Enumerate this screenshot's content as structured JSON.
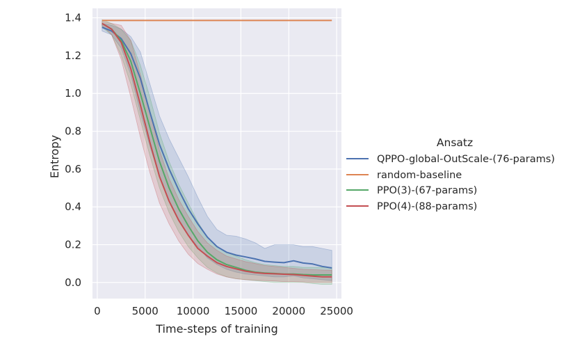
{
  "chart_data": {
    "type": "line",
    "xlabel": "Time-steps of training",
    "ylabel": "Entropy",
    "xlim": [
      -500,
      25500
    ],
    "ylim": [
      -0.085,
      1.45
    ],
    "xticks": [
      0,
      5000,
      10000,
      15000,
      20000,
      25000
    ],
    "yticks": [
      0.0,
      0.2,
      0.4,
      0.6,
      0.8,
      1.0,
      1.2,
      1.4
    ],
    "xtick_labels": [
      "0",
      "5000",
      "10000",
      "15000",
      "20000",
      "25000"
    ],
    "ytick_labels": [
      "0.0",
      "0.2",
      "0.4",
      "0.6",
      "0.8",
      "1.0",
      "1.2",
      "1.4"
    ],
    "grid": true,
    "legend": {
      "title": "Ansatz",
      "placement": "right-outside"
    },
    "x": [
      500,
      1500,
      2500,
      3500,
      4500,
      5500,
      6500,
      7500,
      8500,
      9500,
      10500,
      11500,
      12500,
      13500,
      14500,
      15500,
      16500,
      17500,
      18500,
      19500,
      20500,
      21500,
      22500,
      23500,
      24500
    ],
    "series": [
      {
        "name": "QPPO-global-OutScale-(76-params)",
        "color": "#4c72b0",
        "values": [
          1.35,
          1.33,
          1.29,
          1.21,
          1.08,
          0.9,
          0.73,
          0.6,
          0.49,
          0.39,
          0.31,
          0.24,
          0.19,
          0.16,
          0.145,
          0.135,
          0.125,
          0.112,
          0.108,
          0.105,
          0.115,
          0.103,
          0.098,
          0.085,
          0.077
        ],
        "lower": [
          1.33,
          1.31,
          1.24,
          1.1,
          0.9,
          0.72,
          0.56,
          0.43,
          0.33,
          0.25,
          0.19,
          0.13,
          0.095,
          0.07,
          0.055,
          0.045,
          0.04,
          0.035,
          0.03,
          0.03,
          0.035,
          0.025,
          0.02,
          0.015,
          0.01
        ],
        "upper": [
          1.37,
          1.36,
          1.34,
          1.3,
          1.22,
          1.05,
          0.88,
          0.76,
          0.66,
          0.56,
          0.45,
          0.35,
          0.28,
          0.25,
          0.245,
          0.23,
          0.21,
          0.18,
          0.2,
          0.2,
          0.2,
          0.19,
          0.19,
          0.18,
          0.17
        ]
      },
      {
        "name": "random-baseline",
        "color": "#dd8452",
        "values": [
          1.386,
          1.386,
          1.386,
          1.386,
          1.386,
          1.386,
          1.386,
          1.386,
          1.386,
          1.386,
          1.386,
          1.386,
          1.386,
          1.386,
          1.386,
          1.386,
          1.386,
          1.386,
          1.386,
          1.386,
          1.386,
          1.386,
          1.386,
          1.386,
          1.386
        ]
      },
      {
        "name": "PPO(3)-(67-params)",
        "color": "#55a868",
        "values": [
          1.37,
          1.34,
          1.28,
          1.17,
          1.0,
          0.82,
          0.64,
          0.5,
          0.39,
          0.3,
          0.22,
          0.16,
          0.12,
          0.095,
          0.08,
          0.065,
          0.055,
          0.05,
          0.048,
          0.045,
          0.045,
          0.042,
          0.04,
          0.04,
          0.04
        ],
        "lower": [
          1.35,
          1.31,
          1.2,
          1.05,
          0.86,
          0.67,
          0.5,
          0.37,
          0.27,
          0.19,
          0.13,
          0.08,
          0.05,
          0.03,
          0.02,
          0.015,
          0.01,
          0.005,
          0.0,
          0.0,
          0.0,
          0.0,
          -0.005,
          -0.01,
          -0.01
        ],
        "upper": [
          1.39,
          1.37,
          1.34,
          1.28,
          1.15,
          0.98,
          0.79,
          0.64,
          0.52,
          0.42,
          0.32,
          0.24,
          0.19,
          0.16,
          0.14,
          0.12,
          0.105,
          0.095,
          0.09,
          0.085,
          0.085,
          0.08,
          0.08,
          0.08,
          0.08
        ]
      },
      {
        "name": "PPO(4)-(88-params)",
        "color": "#c44e52",
        "values": [
          1.37,
          1.34,
          1.27,
          1.13,
          0.94,
          0.74,
          0.56,
          0.43,
          0.33,
          0.25,
          0.18,
          0.14,
          0.105,
          0.085,
          0.072,
          0.06,
          0.052,
          0.048,
          0.046,
          0.044,
          0.042,
          0.038,
          0.034,
          0.03,
          0.03
        ],
        "lower": [
          1.36,
          1.31,
          1.18,
          0.98,
          0.77,
          0.58,
          0.42,
          0.31,
          0.22,
          0.15,
          0.1,
          0.07,
          0.045,
          0.03,
          0.02,
          0.015,
          0.012,
          0.01,
          0.008,
          0.005,
          0.005,
          0.003,
          0.0,
          0.0,
          0.0
        ],
        "upper": [
          1.38,
          1.37,
          1.36,
          1.28,
          1.1,
          0.9,
          0.7,
          0.55,
          0.44,
          0.35,
          0.27,
          0.21,
          0.17,
          0.14,
          0.125,
          0.11,
          0.1,
          0.09,
          0.085,
          0.08,
          0.075,
          0.07,
          0.068,
          0.066,
          0.065
        ]
      }
    ]
  }
}
